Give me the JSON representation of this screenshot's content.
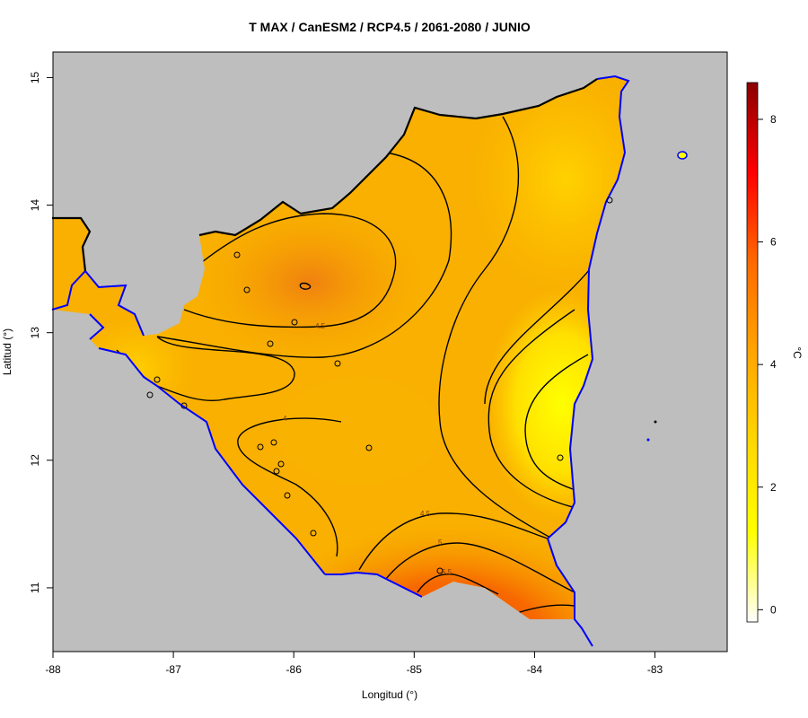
{
  "title": "T MAX / CanESM2 / RCP4.5 / 2061-2080 / JUNIO",
  "x_axis": {
    "label": "Longitud (°)",
    "ticks": [
      {
        "label": "-88",
        "value": -88
      },
      {
        "label": "-87",
        "value": -87
      },
      {
        "label": "-86",
        "value": -86
      },
      {
        "label": "-85",
        "value": -85
      },
      {
        "label": "-84",
        "value": -84
      },
      {
        "label": "-83",
        "value": -83
      }
    ]
  },
  "y_axis": {
    "label": "Latitud (°)",
    "ticks": [
      {
        "label": "11",
        "value": 11
      },
      {
        "label": "12",
        "value": 12
      },
      {
        "label": "13",
        "value": 13
      },
      {
        "label": "14",
        "value": 14
      },
      {
        "label": "15",
        "value": 15
      }
    ]
  },
  "colorbar": {
    "unit_label": "°C",
    "ticks": [
      {
        "label": "0",
        "value": 0
      },
      {
        "label": "2",
        "value": 2
      },
      {
        "label": "4",
        "value": 4
      },
      {
        "label": "6",
        "value": 6
      },
      {
        "label": "8",
        "value": 8
      }
    ],
    "stops": [
      "#ffffff",
      "#ffff00",
      "#ffd700",
      "#ffa500",
      "#ff6a00",
      "#ff0000",
      "#8b0000"
    ]
  },
  "contour_labels": [
    "4.5",
    "4",
    "4.5",
    "5",
    "5.5"
  ],
  "colors": {
    "ocean": "#bebebe",
    "coastline": "#0000ff",
    "border": "#000000",
    "contour": "#000000"
  }
}
